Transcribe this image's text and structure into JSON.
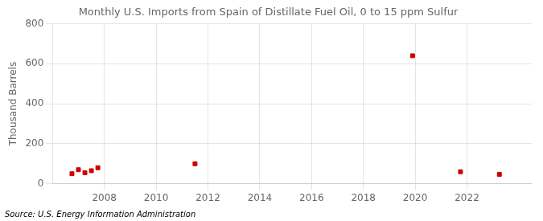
{
  "chart_data": {
    "type": "scatter",
    "title": "Monthly U.S. Imports from Spain of Distillate Fuel Oil, 0 to 15 ppm Sulfur",
    "ylabel": "Thousand Barrels",
    "annotations": [
      "Source: U.S. Energy Information Administration"
    ],
    "x": [
      2006.75,
      2007.0,
      2007.25,
      2007.5,
      2007.75,
      2011.5,
      2019.9,
      2021.75,
      2023.25
    ],
    "values": [
      50,
      70,
      55,
      65,
      80,
      100,
      640,
      60,
      47
    ],
    "color": "#cc0000",
    "marker": "square",
    "xlim": [
      2006.0,
      2024.5
    ],
    "xticks": [
      2008,
      2010,
      2012,
      2014,
      2016,
      2018,
      2020,
      2022
    ],
    "ylim": [
      0,
      800
    ],
    "yticks": [
      0,
      200,
      400,
      600,
      800
    ],
    "grid": true
  }
}
